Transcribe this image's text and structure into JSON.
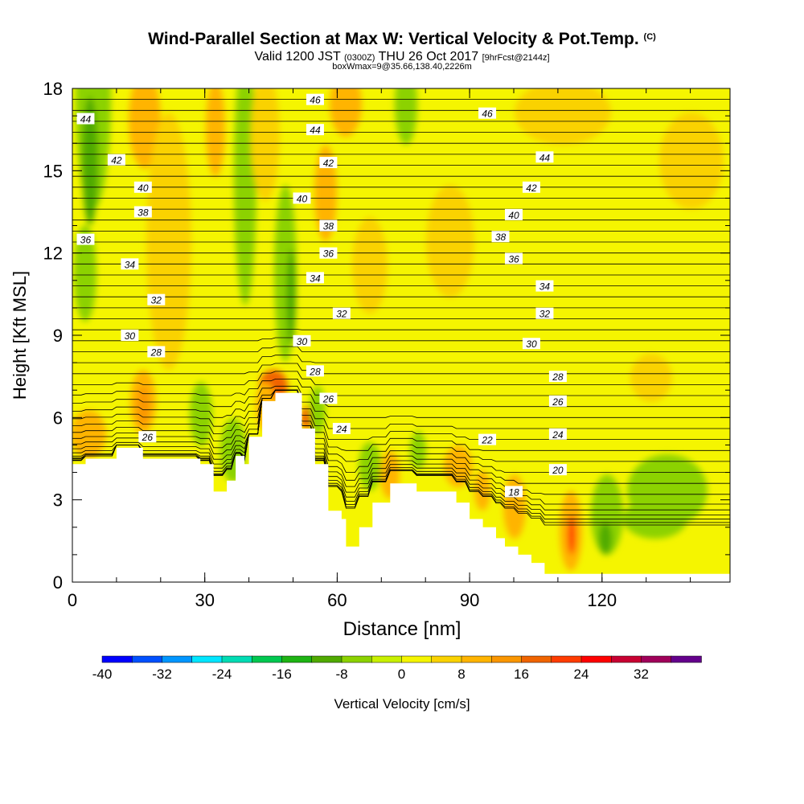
{
  "title": {
    "main": "Wind-Parallel Section at Max W: Vertical Velocity & Pot.Temp.",
    "copyright": "(C)",
    "valid_prefix": "Valid 1200 JST",
    "utc": "(0300Z)",
    "valid_date": "THU 26 Oct 2017",
    "forecast": "[9hrFcst@2144z]",
    "box": "boxWmax=9@35.66,138.40,2226m"
  },
  "chart_data": {
    "type": "heatmap",
    "xlabel": "Distance [nm]",
    "ylabel": "Height [Kft MSL]",
    "xlim": [
      0,
      149
    ],
    "ylim": [
      0,
      18
    ],
    "x_ticks": [
      "0",
      "30",
      "60",
      "90",
      "120"
    ],
    "y_ticks": [
      "0",
      "3",
      "6",
      "9",
      "12",
      "15",
      "18"
    ],
    "colorbar": {
      "label": "Vertical Velocity [cm/s]",
      "tick_labels": [
        "-40",
        "-32",
        "-24",
        "-16",
        "-8",
        "0",
        "8",
        "16",
        "24",
        "32"
      ],
      "levels": [
        -40,
        -36,
        -32,
        -28,
        -24,
        -20,
        -16,
        -12,
        -8,
        -4,
        0,
        4,
        8,
        12,
        16,
        20,
        24,
        28,
        32,
        36
      ],
      "colors": [
        "#0000ff",
        "#0050ff",
        "#0096ff",
        "#00e6ff",
        "#00dcb4",
        "#00c850",
        "#1eb414",
        "#50aa00",
        "#8cd200",
        "#c8f000",
        "#f5f500",
        "#fad200",
        "#ffb400",
        "#fa9600",
        "#f06400",
        "#ff3c00",
        "#ff0000",
        "#c80032",
        "#a0005a",
        "#64008c"
      ]
    },
    "terrain_profile": [
      [
        0,
        4.3
      ],
      [
        3,
        4.3
      ],
      [
        3,
        4.5
      ],
      [
        10,
        4.5
      ],
      [
        10,
        4.9
      ],
      [
        16,
        4.9
      ],
      [
        16,
        4.5
      ],
      [
        29,
        4.5
      ],
      [
        29,
        4.3
      ],
      [
        32,
        4.3
      ],
      [
        32,
        3.3
      ],
      [
        35,
        3.3
      ],
      [
        35,
        3.7
      ],
      [
        37,
        3.7
      ],
      [
        37,
        4.6
      ],
      [
        39,
        4.6
      ],
      [
        39,
        4.3
      ],
      [
        40,
        4.3
      ],
      [
        40,
        5.3
      ],
      [
        43,
        5.3
      ],
      [
        43,
        6.6
      ],
      [
        46,
        6.6
      ],
      [
        46,
        6.9
      ],
      [
        52,
        6.9
      ],
      [
        52,
        5.6
      ],
      [
        55,
        5.6
      ],
      [
        55,
        4.3
      ],
      [
        58,
        4.3
      ],
      [
        58,
        2.6
      ],
      [
        61,
        2.6
      ],
      [
        61,
        2.3
      ],
      [
        62,
        2.3
      ],
      [
        62,
        1.3
      ],
      [
        65,
        1.3
      ],
      [
        65,
        2.0
      ],
      [
        68,
        2.0
      ],
      [
        68,
        2.9
      ],
      [
        72,
        2.9
      ],
      [
        72,
        3.6
      ],
      [
        78,
        3.6
      ],
      [
        78,
        3.3
      ],
      [
        87,
        3.3
      ],
      [
        87,
        2.9
      ],
      [
        90,
        2.9
      ],
      [
        90,
        2.3
      ],
      [
        93,
        2.3
      ],
      [
        93,
        2.0
      ],
      [
        96,
        2.0
      ],
      [
        96,
        1.6
      ],
      [
        98,
        1.6
      ],
      [
        98,
        1.3
      ],
      [
        101,
        1.3
      ],
      [
        101,
        1.0
      ],
      [
        104,
        1.0
      ],
      [
        104,
        0.7
      ],
      [
        107,
        0.7
      ],
      [
        107,
        0.3
      ],
      [
        149,
        0.3
      ]
    ],
    "contour_labels": [
      {
        "text": "44",
        "x": 3,
        "y": 16.9
      },
      {
        "text": "42",
        "x": 10,
        "y": 15.4
      },
      {
        "text": "40",
        "x": 16,
        "y": 14.4
      },
      {
        "text": "38",
        "x": 16,
        "y": 13.5
      },
      {
        "text": "36",
        "x": 3,
        "y": 12.5
      },
      {
        "text": "34",
        "x": 13,
        "y": 11.6
      },
      {
        "text": "32",
        "x": 19,
        "y": 10.3
      },
      {
        "text": "30",
        "x": 13,
        "y": 9.0
      },
      {
        "text": "28",
        "x": 19,
        "y": 8.4
      },
      {
        "text": "26",
        "x": 17,
        "y": 5.3
      },
      {
        "text": "46",
        "x": 55,
        "y": 17.6
      },
      {
        "text": "44",
        "x": 55,
        "y": 16.5
      },
      {
        "text": "42",
        "x": 58,
        "y": 15.3
      },
      {
        "text": "40",
        "x": 52,
        "y": 14.0
      },
      {
        "text": "38",
        "x": 58,
        "y": 13.0
      },
      {
        "text": "36",
        "x": 58,
        "y": 12.0
      },
      {
        "text": "34",
        "x": 55,
        "y": 11.1
      },
      {
        "text": "32",
        "x": 61,
        "y": 9.8
      },
      {
        "text": "30",
        "x": 52,
        "y": 8.8
      },
      {
        "text": "28",
        "x": 55,
        "y": 7.7
      },
      {
        "text": "26",
        "x": 58,
        "y": 6.7
      },
      {
        "text": "24",
        "x": 61,
        "y": 5.6
      },
      {
        "text": "46",
        "x": 94,
        "y": 17.1
      },
      {
        "text": "44",
        "x": 107,
        "y": 15.5
      },
      {
        "text": "42",
        "x": 104,
        "y": 14.4
      },
      {
        "text": "40",
        "x": 100,
        "y": 13.4
      },
      {
        "text": "38",
        "x": 97,
        "y": 12.6
      },
      {
        "text": "36",
        "x": 100,
        "y": 11.8
      },
      {
        "text": "34",
        "x": 107,
        "y": 10.8
      },
      {
        "text": "32",
        "x": 107,
        "y": 9.8
      },
      {
        "text": "30",
        "x": 104,
        "y": 8.7
      },
      {
        "text": "28",
        "x": 110,
        "y": 7.5
      },
      {
        "text": "26",
        "x": 110,
        "y": 6.6
      },
      {
        "text": "24",
        "x": 110,
        "y": 5.4
      },
      {
        "text": "22",
        "x": 94,
        "y": 5.2
      },
      {
        "text": "20",
        "x": 110,
        "y": 4.1
      },
      {
        "text": "18",
        "x": 100,
        "y": 3.3
      }
    ]
  }
}
